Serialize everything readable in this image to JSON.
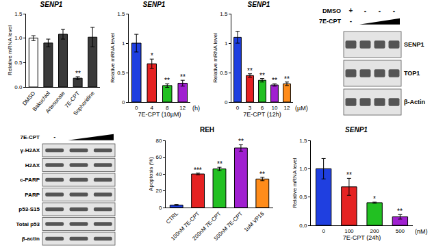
{
  "chart_data": [
    {
      "type": "bar",
      "title": "SENP1",
      "y_label": "Relative mRNA level",
      "categories": [
        "DMSO",
        "Bakuchiol",
        "Artesunate",
        "7E-CPT",
        "Sophoridine"
      ],
      "values": [
        1.0,
        0.9,
        1.08,
        0.18,
        1.02
      ],
      "errors": [
        0.05,
        0.08,
        0.1,
        0.03,
        0.2
      ],
      "colors": [
        "#ffffff",
        "#3a3a3a",
        "#3a3a3a",
        "#3a3a3a",
        "#3a3a3a"
      ],
      "significance": [
        null,
        null,
        null,
        "**",
        null
      ],
      "ylim": [
        0,
        1.5
      ],
      "yticks": [
        {
          "value": 0,
          "label": "0.0"
        },
        {
          "value": 0.5,
          "label": "0.5"
        },
        {
          "value": 1,
          "label": "1.0"
        },
        {
          "value": 1.5,
          "label": "1.5"
        }
      ]
    },
    {
      "type": "bar",
      "title": "SENP1",
      "y_label": "Relative mRNA level",
      "x_label": "7E-CPT (10µM)",
      "x_unit": "(h)",
      "categories": [
        "0",
        "4",
        "8",
        "12"
      ],
      "values": [
        1.0,
        0.65,
        0.28,
        0.32
      ],
      "errors": [
        0.15,
        0.08,
        0.03,
        0.05
      ],
      "colors": [
        "#1f3fe0",
        "#e52222",
        "#22c022",
        "#a020d0"
      ],
      "significance": [
        null,
        "*",
        "**",
        "**"
      ],
      "ylim": [
        0,
        1.5
      ],
      "yticks": [
        0,
        0.5,
        1,
        1.5
      ]
    },
    {
      "type": "bar",
      "title": "SENP1",
      "y_label": "Relative mRNA level",
      "x_label": "7E-CPT (12h)",
      "x_unit": "(µM)",
      "categories": [
        "0",
        "3",
        "6",
        "10",
        "12"
      ],
      "values": [
        1.1,
        0.45,
        0.37,
        0.29,
        0.31
      ],
      "errors": [
        0.1,
        0.03,
        0.03,
        0.02,
        0.03
      ],
      "colors": [
        "#1f3fe0",
        "#e52222",
        "#22c022",
        "#a020d0",
        "#ff8c1a"
      ],
      "significance": [
        null,
        "**",
        "**",
        "**",
        "**"
      ],
      "ylim": [
        0,
        1.5
      ],
      "yticks": [
        0,
        0.5,
        1,
        1.5
      ]
    },
    {
      "type": "bar",
      "title": "REH",
      "y_label": "Apoptosis (%)",
      "categories": [
        "CTRL",
        "100nM 7E-CPT",
        "200nM 7E-CPT",
        "500nM 7E-CPT",
        "1uM VP16"
      ],
      "values": [
        3,
        40,
        46,
        71,
        34
      ],
      "errors": [
        0.5,
        1,
        2,
        4,
        2
      ],
      "colors": [
        "#1f3fe0",
        "#e52222",
        "#22c022",
        "#a020d0",
        "#ff8c1a"
      ],
      "significance": [
        null,
        "***",
        "**",
        "**",
        "**"
      ],
      "ylim": [
        0,
        80
      ],
      "yticks": [
        0,
        20,
        40,
        60,
        80
      ]
    },
    {
      "type": "bar",
      "title": "SENP1",
      "y_label": "Relative mRNA level",
      "x_label": "7E-CPT (24h)",
      "x_unit": "(nM)",
      "categories": [
        "0",
        "100",
        "200",
        "500"
      ],
      "values": [
        1.0,
        0.68,
        0.4,
        0.15
      ],
      "errors": [
        0.18,
        0.15,
        0.01,
        0.04
      ],
      "colors": [
        "#1f3fe0",
        "#e52222",
        "#22c022",
        "#a020d0"
      ],
      "significance": [
        null,
        "**",
        "*",
        "**"
      ],
      "ylim": [
        0,
        1.5
      ],
      "yticks": [
        {
          "value": 0,
          "label": "0,0"
        },
        {
          "value": 0.5,
          "label": "0,5"
        },
        {
          "value": 1,
          "label": "1,0"
        },
        {
          "value": 1.5,
          "label": "1,5"
        }
      ]
    }
  ],
  "blots": [
    {
      "lanes": 4,
      "label_side": "right",
      "treatments": [
        {
          "label": "DMSO",
          "marks": [
            "+",
            "-",
            "-",
            "-"
          ]
        },
        {
          "label": "7E-CPT",
          "marks": [
            "-"
          ],
          "gradient": true
        }
      ],
      "rows": [
        "SENP1",
        "TOP1",
        "β-Actin"
      ]
    },
    {
      "lanes": 3,
      "label_side": "left",
      "treatments": [
        {
          "label": "7E-CPT",
          "marks": [
            "-"
          ],
          "gradient": true
        }
      ],
      "rows": [
        "γ-H2AX",
        "H2AX",
        "c-PARP",
        "PARP",
        "p53-S15",
        "Total p53",
        "β-actin"
      ]
    }
  ]
}
